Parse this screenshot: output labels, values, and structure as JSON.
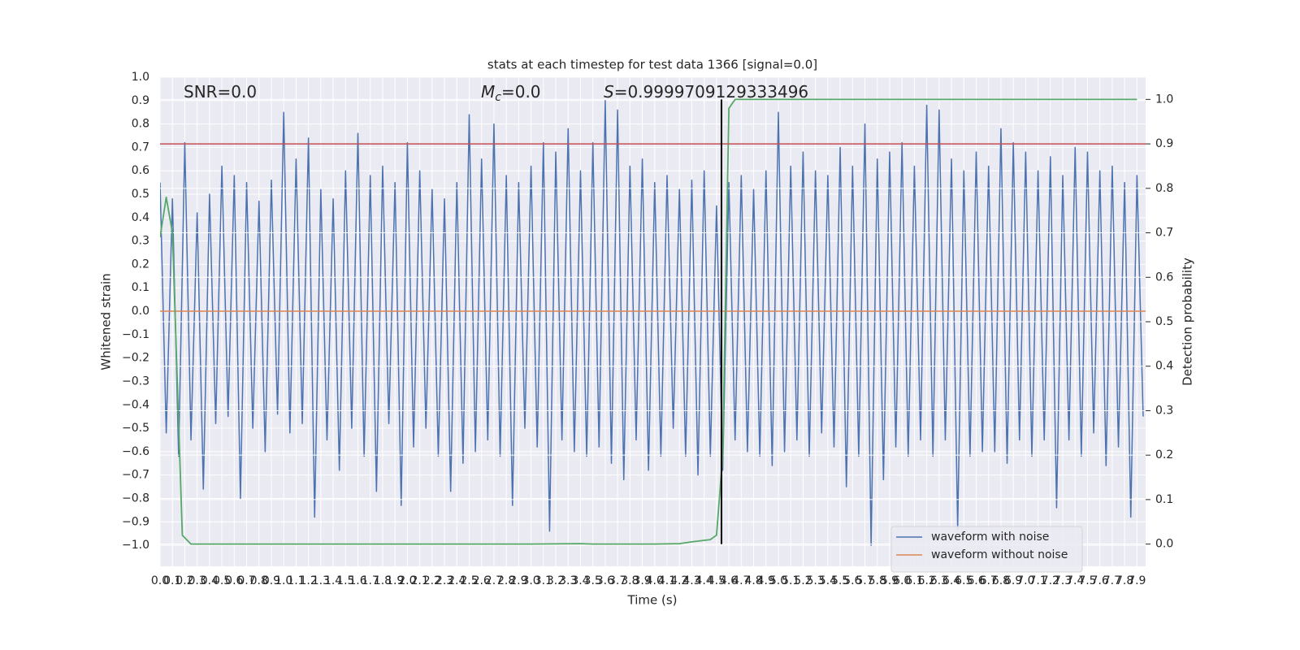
{
  "chart_data": {
    "type": "line",
    "title": "stats at each timestep for test data 1366 [signal=0.0]",
    "xlabel": "Time (s)",
    "ylabel": "Whitened strain",
    "y2label": "Detection probability",
    "annotations": [
      {
        "text": "SNR=0.0"
      },
      {
        "symbol": "M",
        "subscript": "c",
        "text": "=0.0"
      },
      {
        "symbol": "S",
        "text": "=0.9999709129333496"
      }
    ],
    "xlim": [
      0,
      7.97
    ],
    "ylim": [
      -1.09,
      1.0
    ],
    "y2lim": [
      -0.05,
      1.05
    ],
    "grid": true,
    "legend": "lower right",
    "xticks": [
      {
        "value": 0,
        "label": "0.0"
      },
      0.1,
      0.2,
      0.3,
      0.4,
      0.5,
      0.6,
      0.7,
      0.8,
      0.9,
      {
        "value": 1,
        "label": "1.0"
      },
      1.1,
      1.2,
      1.3,
      1.4,
      1.5,
      1.6,
      1.7,
      1.8,
      1.9,
      {
        "value": 2,
        "label": "2.0"
      },
      2.1,
      2.2,
      2.3,
      2.4,
      2.5,
      2.6,
      2.7,
      2.8,
      2.9,
      {
        "value": 3,
        "label": "3.0"
      },
      3.1,
      3.2,
      3.3,
      3.4,
      3.5,
      3.6,
      3.7,
      3.8,
      3.9,
      {
        "value": 4,
        "label": "4.0"
      },
      4.1,
      4.2,
      4.3,
      4.4,
      4.5,
      4.6,
      4.7,
      4.8,
      4.9,
      {
        "value": 5,
        "label": "5.0"
      },
      5.1,
      5.2,
      5.3,
      5.4,
      5.5,
      5.6,
      5.7,
      5.8,
      5.9,
      {
        "value": 6,
        "label": "6.0"
      },
      6.1,
      6.2,
      6.3,
      6.4,
      6.5,
      6.6,
      6.7,
      6.8,
      6.9,
      {
        "value": 7,
        "label": "7.0"
      },
      7.1,
      7.2,
      7.3,
      7.4,
      7.5,
      7.6,
      7.7,
      7.8,
      7.9
    ],
    "yticks": [
      {
        "value": -1,
        "label": "−1.0"
      },
      {
        "value": -0.9,
        "label": "−0.9"
      },
      {
        "value": -0.8,
        "label": "−0.8"
      },
      {
        "value": -0.7,
        "label": "−0.7"
      },
      {
        "value": -0.6,
        "label": "−0.6"
      },
      {
        "value": -0.5,
        "label": "−0.5"
      },
      {
        "value": -0.4,
        "label": "−0.4"
      },
      {
        "value": -0.3,
        "label": "−0.3"
      },
      {
        "value": -0.2,
        "label": "−0.2"
      },
      {
        "value": -0.1,
        "label": "−0.1"
      },
      {
        "value": 0,
        "label": "0.0"
      },
      0.1,
      0.2,
      0.3,
      0.4,
      0.5,
      0.6,
      0.7,
      0.8,
      0.9,
      {
        "value": 1,
        "label": "1.0"
      }
    ],
    "y2ticks": [
      {
        "value": 0,
        "label": "0.0"
      },
      0.1,
      0.2,
      0.3,
      0.4,
      0.5,
      0.6,
      0.7,
      0.8,
      0.9,
      {
        "value": 1,
        "label": "1.0"
      }
    ],
    "series": [
      {
        "name": "waveform with noise",
        "color": "#4c72b0",
        "x": [
          0,
          0.05,
          0.1,
          0.15,
          0.2,
          0.25,
          0.3,
          0.35,
          0.4,
          0.45,
          0.5,
          0.55,
          0.6,
          0.65,
          0.7,
          0.75,
          0.8,
          0.85,
          0.9,
          0.95,
          1,
          1.05,
          1.1,
          1.15,
          1.2,
          1.25,
          1.3,
          1.35,
          1.4,
          1.45,
          1.5,
          1.55,
          1.6,
          1.65,
          1.7,
          1.75,
          1.8,
          1.85,
          1.9,
          1.95,
          2,
          2.05,
          2.1,
          2.15,
          2.2,
          2.25,
          2.3,
          2.35,
          2.4,
          2.45,
          2.5,
          2.55,
          2.6,
          2.65,
          2.7,
          2.75,
          2.8,
          2.85,
          2.9,
          2.95,
          3,
          3.05,
          3.1,
          3.15,
          3.2,
          3.25,
          3.3,
          3.35,
          3.4,
          3.45,
          3.5,
          3.55,
          3.6,
          3.65,
          3.7,
          3.75,
          3.8,
          3.85,
          3.9,
          3.95,
          4,
          4.05,
          4.1,
          4.15,
          4.2,
          4.25,
          4.3,
          4.35,
          4.4,
          4.45,
          4.5,
          4.55,
          4.6,
          4.65,
          4.7,
          4.75,
          4.8,
          4.85,
          4.9,
          4.95,
          5,
          5.05,
          5.1,
          5.15,
          5.2,
          5.25,
          5.3,
          5.35,
          5.4,
          5.45,
          5.5,
          5.55,
          5.6,
          5.65,
          5.7,
          5.75,
          5.8,
          5.85,
          5.9,
          5.95,
          6,
          6.05,
          6.1,
          6.15,
          6.2,
          6.25,
          6.3,
          6.35,
          6.4,
          6.45,
          6.5,
          6.55,
          6.6,
          6.65,
          6.7,
          6.75,
          6.8,
          6.85,
          6.9,
          6.95,
          7,
          7.05,
          7.1,
          7.15,
          7.2,
          7.25,
          7.3,
          7.35,
          7.4,
          7.45,
          7.5,
          7.55,
          7.6,
          7.65,
          7.7,
          7.75,
          7.8,
          7.85,
          7.9,
          7.95
        ],
        "values": [
          0.55,
          -0.52,
          0.48,
          -0.62,
          0.72,
          -0.55,
          0.42,
          -0.76,
          0.5,
          -0.48,
          0.62,
          -0.45,
          0.58,
          -0.8,
          0.55,
          -0.5,
          0.47,
          -0.6,
          0.56,
          -0.44,
          0.85,
          -0.52,
          0.65,
          -0.48,
          0.74,
          -0.88,
          0.52,
          -0.55,
          0.48,
          -0.68,
          0.6,
          -0.5,
          0.76,
          -0.62,
          0.58,
          -0.77,
          0.62,
          -0.48,
          0.55,
          -0.83,
          0.72,
          -0.58,
          0.6,
          -0.5,
          0.52,
          -0.62,
          0.48,
          -0.77,
          0.55,
          -0.65,
          0.84,
          -0.6,
          0.65,
          -0.55,
          0.8,
          -0.62,
          0.58,
          -0.83,
          0.55,
          -0.5,
          0.62,
          -0.58,
          0.72,
          -0.94,
          0.68,
          -0.55,
          0.78,
          -0.6,
          0.6,
          -0.62,
          0.72,
          -0.58,
          0.9,
          -0.65,
          0.86,
          -0.72,
          0.62,
          -0.55,
          0.65,
          -0.68,
          0.55,
          -0.62,
          0.58,
          -0.5,
          0.52,
          -0.62,
          0.56,
          -0.7,
          0.6,
          -0.62,
          0.45,
          -0.68,
          0.55,
          -0.55,
          0.58,
          -0.6,
          0.52,
          -0.62,
          0.6,
          -0.66,
          0.85,
          -0.6,
          0.62,
          -0.55,
          0.68,
          -0.62,
          0.6,
          -0.52,
          0.58,
          -0.58,
          0.7,
          -0.75,
          0.62,
          -0.62,
          0.8,
          -1.0,
          0.65,
          -0.72,
          0.68,
          -0.58,
          0.72,
          -0.62,
          0.62,
          -0.55,
          0.88,
          -0.62,
          0.86,
          -0.55,
          0.65,
          -0.93,
          0.6,
          -0.62,
          0.68,
          -0.6,
          0.62,
          -0.6,
          0.78,
          -0.65,
          0.72,
          -0.55,
          0.68,
          -0.62,
          0.6,
          -0.55,
          0.66,
          -0.84,
          0.58,
          -0.55,
          0.7,
          -0.62,
          0.68,
          -0.52,
          0.6,
          -0.66,
          0.62,
          -0.58,
          0.55,
          -0.88,
          0.58,
          -0.45
        ]
      },
      {
        "name": "waveform without noise",
        "color": "#dd8452",
        "x": [
          0,
          7.97
        ],
        "values": [
          0,
          0
        ]
      },
      {
        "color": "#55a868",
        "axis": "y2",
        "x": [
          0,
          0.05,
          0.1,
          0.18,
          0.25,
          1,
          2,
          3,
          3.4,
          3.5,
          4,
          4.2,
          4.3,
          4.45,
          4.5,
          4.55,
          4.6,
          4.65,
          5,
          6,
          7,
          7.9
        ],
        "values": [
          0.69,
          0.78,
          0.7,
          0.02,
          0,
          0,
          0,
          0,
          0.001,
          0,
          0,
          0.001,
          0.005,
          0.01,
          0.02,
          0.2,
          0.98,
          1,
          1,
          1,
          1,
          1
        ]
      }
    ],
    "threshold": {
      "value": 0.9,
      "axis": "y2",
      "color": "#c44e52"
    },
    "vline": {
      "value": 4.54,
      "color": "#000000"
    }
  }
}
